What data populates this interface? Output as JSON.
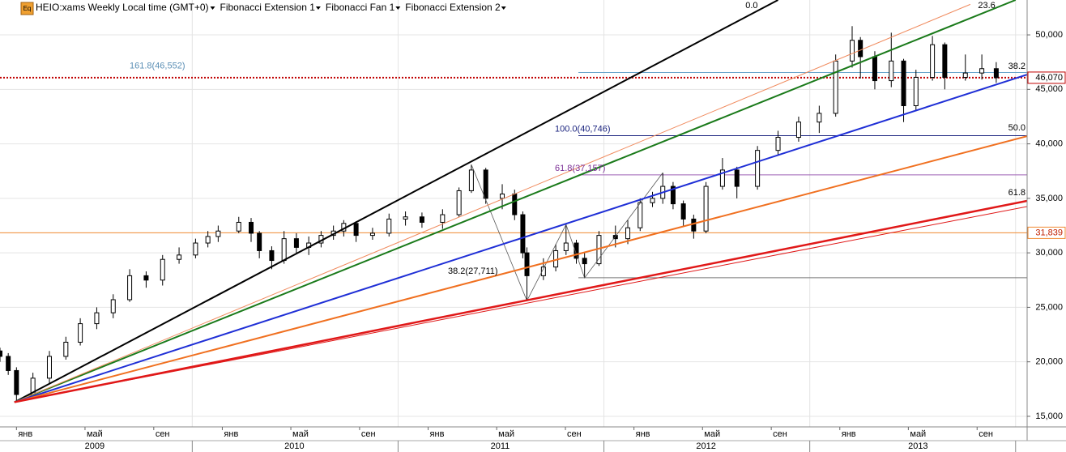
{
  "chart_data": {
    "type": "candlestick",
    "header": {
      "icon": "Eq",
      "symbol": "HEIO:xams Weekly Local time (GMT+0)",
      "studies": [
        "Fibonacci Extension 1",
        "Fibonacci Fan 1",
        "Fibonacci Extension 2"
      ]
    },
    "xlim": [
      2008.92,
      2013.91
    ],
    "ylim": [
      14030,
      53200
    ],
    "yticks": [
      {
        "value": 15000,
        "label": "15,000"
      },
      {
        "value": 20000,
        "label": "20,000"
      },
      {
        "value": 25000,
        "label": "25,000"
      },
      {
        "value": 30000,
        "label": "30,000"
      },
      {
        "value": 35000,
        "label": "35,000"
      },
      {
        "value": 40000,
        "label": "40,000"
      },
      {
        "value": 45000,
        "label": "45,000"
      },
      {
        "value": 50000,
        "label": "50,000"
      }
    ],
    "xticks": [
      {
        "value": 2009.0,
        "label": "янв"
      },
      {
        "value": 2009.333,
        "label": "май"
      },
      {
        "value": 2009.667,
        "label": "сен"
      },
      {
        "value": 2010.0,
        "label": "янв"
      },
      {
        "value": 2010.333,
        "label": "май"
      },
      {
        "value": 2010.667,
        "label": "сен"
      },
      {
        "value": 2011.0,
        "label": "янв"
      },
      {
        "value": 2011.333,
        "label": "май"
      },
      {
        "value": 2011.667,
        "label": "сен"
      },
      {
        "value": 2012.0,
        "label": "янв"
      },
      {
        "value": 2012.333,
        "label": "май"
      },
      {
        "value": 2012.667,
        "label": "сен"
      },
      {
        "value": 2013.0,
        "label": "янв"
      },
      {
        "value": 2013.333,
        "label": "май"
      },
      {
        "value": 2013.667,
        "label": "сен"
      }
    ],
    "year_labels": [
      {
        "value": 2009.38,
        "label": "2009"
      },
      {
        "value": 2010.35,
        "label": "2010"
      },
      {
        "value": 2011.35,
        "label": "2011"
      },
      {
        "value": 2012.35,
        "label": "2012"
      },
      {
        "value": 2013.38,
        "label": "2013"
      }
    ],
    "year_separators": [
      2009.854,
      2010.854,
      2011.854,
      2012.854,
      2013.854
    ],
    "grid": true,
    "up_color": "#ffffff",
    "down_color": "#000000",
    "x": [
      2008.92,
      2008.96,
      2009.0,
      2009.08,
      2009.16,
      2009.24,
      2009.31,
      2009.39,
      2009.47,
      2009.55,
      2009.63,
      2009.71,
      2009.79,
      2009.87,
      2009.93,
      2009.98,
      2010.08,
      2010.14,
      2010.18,
      2010.24,
      2010.3,
      2010.36,
      2010.42,
      2010.48,
      2010.54,
      2010.59,
      2010.65,
      2010.73,
      2010.81,
      2010.89,
      2010.97,
      2011.07,
      2011.15,
      2011.21,
      2011.28,
      2011.36,
      2011.42,
      2011.46,
      2011.48,
      2011.56,
      2011.62,
      2011.67,
      2011.72,
      2011.76,
      2011.83,
      2011.91,
      2011.97,
      2012.03,
      2012.09,
      2012.14,
      2012.19,
      2012.24,
      2012.29,
      2012.35,
      2012.43,
      2012.5,
      2012.6,
      2012.7,
      2012.8,
      2012.9,
      2012.98,
      2013.06,
      2013.1,
      2013.17,
      2013.25,
      2013.31,
      2013.37,
      2013.45,
      2013.51,
      2013.61,
      2013.69,
      2013.76
    ],
    "open": [
      21000,
      20500,
      19200,
      17000,
      18500,
      20500,
      21800,
      23500,
      24500,
      25700,
      27900,
      27500,
      29400,
      29800,
      30900,
      31500,
      32000,
      32800,
      31800,
      30200,
      29300,
      31300,
      30500,
      30900,
      31600,
      32000,
      32700,
      31600,
      31800,
      33100,
      33300,
      32800,
      33500,
      35700,
      37600,
      35000,
      35400,
      33500,
      30000,
      27900,
      28700,
      30200,
      30900,
      29500,
      29000,
      31600,
      31300,
      32300,
      34600,
      35000,
      36100,
      34500,
      33100,
      32000,
      36100,
      37600,
      36100,
      39400,
      40600,
      42000,
      42800,
      47600,
      49500,
      48000,
      45800,
      47600,
      43500,
      46100,
      49100,
      46100,
      46500,
      46900
    ],
    "high": [
      21300,
      20800,
      19500,
      19000,
      21000,
      22300,
      24000,
      25000,
      26200,
      28500,
      28300,
      29800,
      30500,
      31300,
      32000,
      32500,
      33300,
      33200,
      32000,
      30600,
      32000,
      31800,
      31500,
      32000,
      32500,
      33000,
      32900,
      32300,
      33600,
      33800,
      33700,
      34000,
      36000,
      38100,
      37800,
      36300,
      35800,
      33800,
      30500,
      29500,
      30800,
      32600,
      31200,
      30000,
      32000,
      32500,
      33000,
      35000,
      35600,
      37350,
      36500,
      34800,
      33500,
      36500,
      38700,
      37900,
      39800,
      41200,
      42500,
      43500,
      48200,
      50800,
      49800,
      48500,
      50200,
      47800,
      46800,
      49900,
      49300,
      48200,
      48200,
      47500
    ],
    "low": [
      20000,
      18800,
      16300,
      16800,
      18000,
      20200,
      21500,
      23000,
      24000,
      25500,
      26800,
      27000,
      29000,
      29500,
      30500,
      31000,
      31800,
      31000,
      29500,
      28500,
      29000,
      30000,
      29800,
      30500,
      31200,
      31500,
      31000,
      31200,
      31500,
      32500,
      32300,
      32200,
      33300,
      35500,
      34500,
      34000,
      33000,
      29500,
      25600,
      27500,
      28300,
      29800,
      29000,
      27700,
      28800,
      30500,
      30800,
      32000,
      34200,
      34500,
      34000,
      32500,
      31300,
      31800,
      35800,
      35000,
      35800,
      39000,
      40200,
      41000,
      42500,
      47000,
      46000,
      45000,
      45200,
      42000,
      43000,
      45800,
      45000,
      45800,
      45900,
      45600
    ],
    "close": [
      20500,
      19200,
      17000,
      18500,
      20500,
      21800,
      23500,
      24500,
      25700,
      27900,
      27500,
      29400,
      29800,
      30900,
      31500,
      32000,
      32800,
      31800,
      30200,
      29300,
      31300,
      30500,
      30900,
      31600,
      32000,
      32700,
      31600,
      31800,
      33100,
      33300,
      32800,
      33500,
      35700,
      37600,
      35000,
      35400,
      33500,
      30000,
      27900,
      28700,
      30200,
      30900,
      29500,
      29000,
      31600,
      31300,
      32300,
      34600,
      35000,
      36100,
      34500,
      33100,
      32000,
      36100,
      37600,
      36100,
      39400,
      40600,
      42000,
      42800,
      47600,
      49500,
      48000,
      45800,
      47600,
      43500,
      46100,
      49100,
      46100,
      46500,
      46900,
      46070
    ],
    "fan": {
      "origin": {
        "x": 2008.99,
        "y": 16300
      },
      "lines": [
        {
          "label": "0.0",
          "color": "#000000",
          "width": 2,
          "x": 2012.7,
          "y": 53200
        },
        {
          "label": "23.6",
          "color": "#1a7a1a",
          "width": 2,
          "x": 2013.854,
          "y": 53200
        },
        {
          "color": "#f08a5d",
          "width": 1,
          "x": 2013.634,
          "y": 52800
        },
        {
          "label": "38.2",
          "color": "#1f2fd6",
          "width": 2,
          "x": 2013.91,
          "y": 46360
        },
        {
          "label": "50.0",
          "color": "#f07020",
          "width": 2,
          "x": 2013.91,
          "y": 40710
        },
        {
          "label": "61.8",
          "color": "#e01818",
          "width": 2.5,
          "x": 2013.91,
          "y": 34770
        },
        {
          "color": "#e01818",
          "width": 1,
          "x": 2013.91,
          "y": 34250
        }
      ]
    },
    "extensions": [
      {
        "color": "#555555",
        "x": [
          2011.21,
          2011.48,
          2011.67
        ],
        "y": [
          38100,
          25600,
          32600
        ]
      },
      {
        "color": "#555555",
        "x": [
          2011.67,
          2011.76,
          2012.14
        ],
        "y": [
          32600,
          27700,
          37350
        ]
      }
    ],
    "fib_levels": [
      {
        "label": "161.8(46,552)",
        "value": 46552,
        "x_start": 2011.73,
        "color": "#6aa6cc",
        "label_color": "#5b8fb5"
      },
      {
        "label": "100.0(40,746)",
        "value": 40746,
        "x_start": 2011.73,
        "color": "#1a237e",
        "label_color": "#1a237e"
      },
      {
        "label": "61.8(37,157)",
        "value": 37157,
        "x_start": 2011.73,
        "color": "#9c5fb5",
        "label_color": "#7b2f95"
      },
      {
        "label": "38.2(27,711)",
        "value": 27711,
        "x_start": 2011.73,
        "color": "#777777",
        "label_color": "#000000"
      }
    ],
    "price_lines": [
      {
        "value": 46070,
        "label": "46,070",
        "color": "#c00000",
        "style": "dotted",
        "label_color": "#000000"
      },
      {
        "value": 31839,
        "label": "31,839",
        "color": "#f08a30",
        "style": "solid",
        "label_color": "#c02000"
      }
    ]
  }
}
